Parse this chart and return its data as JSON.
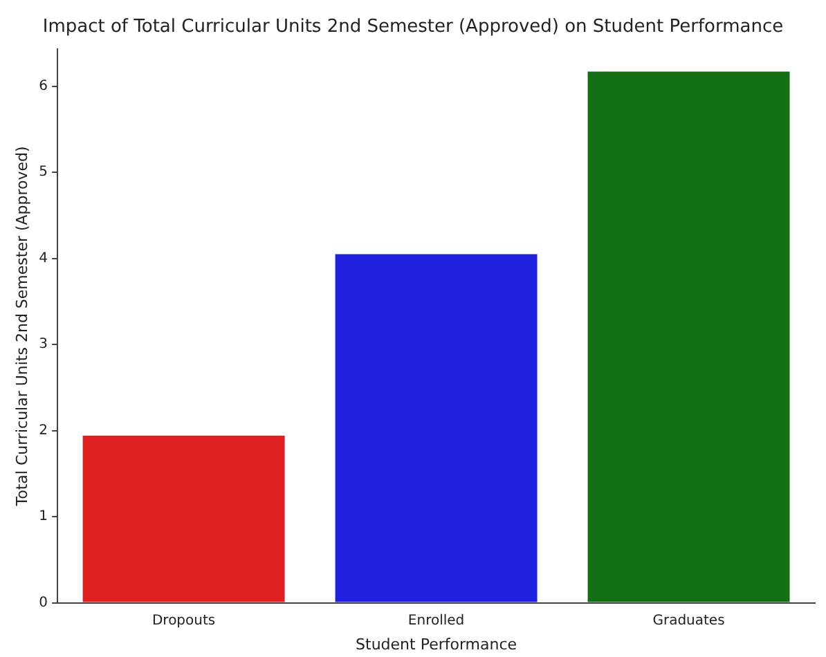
{
  "chart_data": {
    "type": "bar",
    "title": "Impact of Total Curricular Units 2nd Semester (Approved) on Student Performance",
    "xlabel": "Student Performance",
    "ylabel": "Total Curricular Units 2nd Semester (Approved)",
    "categories": [
      "Dropouts",
      "Enrolled",
      "Graduates"
    ],
    "values": [
      1.94,
      4.05,
      6.17
    ],
    "colors": [
      "#e02020",
      "#2020e0",
      "#127012"
    ],
    "ylim": [
      0,
      6.43
    ],
    "yticks": [
      0,
      1,
      2,
      3,
      4,
      5,
      6
    ],
    "grid": false,
    "legend": false
  }
}
